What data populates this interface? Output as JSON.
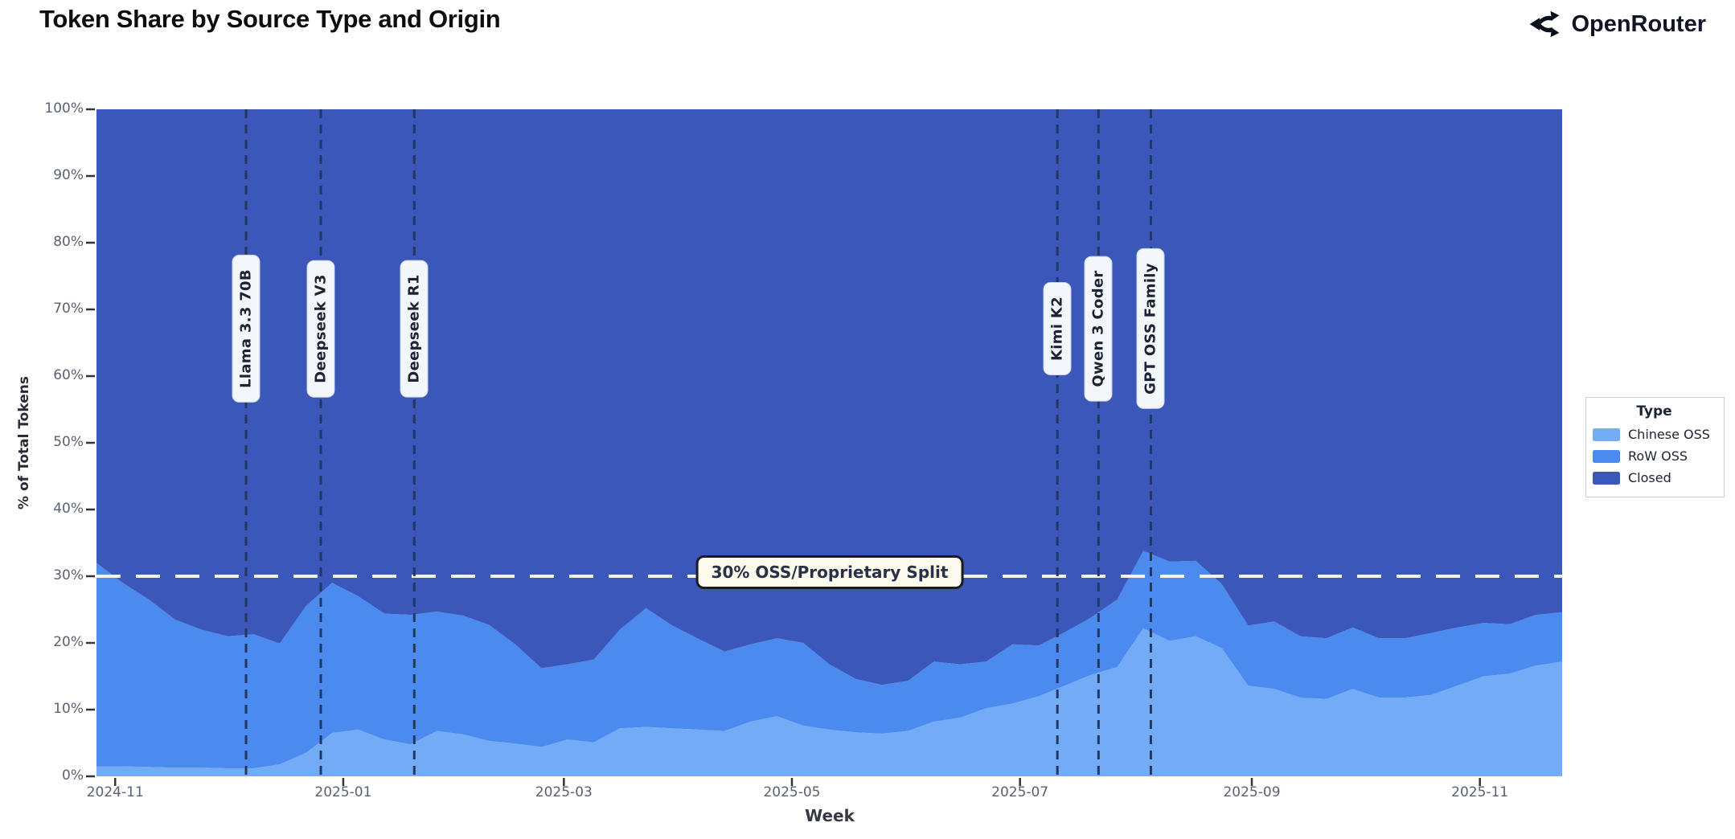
{
  "page": {
    "title": "Token Share by Source Type and Origin"
  },
  "brand": {
    "name": "OpenRouter"
  },
  "chart_data": {
    "type": "area",
    "stacked": true,
    "title": "Token Share by Source Type and Origin",
    "xlabel": "Week",
    "ylabel": "% of Total Tokens",
    "ylim": [
      0,
      100
    ],
    "grid": false,
    "legend_position": "right",
    "legend_title": "Type",
    "y_tick_labels": [
      "0%",
      "10%",
      "20%",
      "30%",
      "40%",
      "50%",
      "60%",
      "70%",
      "80%",
      "90%",
      "100%"
    ],
    "y_tick_values": [
      0,
      10,
      20,
      30,
      40,
      50,
      60,
      70,
      80,
      90,
      100
    ],
    "x_ticks": [
      {
        "label": "2024-11",
        "date": "2024-11-01"
      },
      {
        "label": "2025-01",
        "date": "2025-01-01"
      },
      {
        "label": "2025-03",
        "date": "2025-03-01"
      },
      {
        "label": "2025-05",
        "date": "2025-05-01"
      },
      {
        "label": "2025-07",
        "date": "2025-07-01"
      },
      {
        "label": "2025-09",
        "date": "2025-09-01"
      },
      {
        "label": "2025-11",
        "date": "2025-11-01"
      }
    ],
    "weeks": [
      "2024-10-27",
      "2024-11-03",
      "2024-11-10",
      "2024-11-17",
      "2024-11-24",
      "2024-12-01",
      "2024-12-08",
      "2024-12-15",
      "2024-12-22",
      "2024-12-29",
      "2025-01-05",
      "2025-01-12",
      "2025-01-19",
      "2025-01-26",
      "2025-02-02",
      "2025-02-09",
      "2025-02-16",
      "2025-02-23",
      "2025-03-02",
      "2025-03-09",
      "2025-03-16",
      "2025-03-23",
      "2025-03-30",
      "2025-04-06",
      "2025-04-13",
      "2025-04-20",
      "2025-04-27",
      "2025-05-04",
      "2025-05-11",
      "2025-05-18",
      "2025-05-25",
      "2025-06-01",
      "2025-06-08",
      "2025-06-15",
      "2025-06-22",
      "2025-06-29",
      "2025-07-06",
      "2025-07-13",
      "2025-07-20",
      "2025-07-27",
      "2025-08-03",
      "2025-08-10",
      "2025-08-17",
      "2025-08-24",
      "2025-08-31",
      "2025-09-07",
      "2025-09-14",
      "2025-09-21",
      "2025-09-28",
      "2025-10-05",
      "2025-10-12",
      "2025-10-19",
      "2025-10-26",
      "2025-11-02",
      "2025-11-09",
      "2025-11-16",
      "2025-11-23"
    ],
    "series": [
      {
        "name": "Chinese OSS",
        "color": "#74abf7",
        "values": [
          1.5,
          1.5,
          1.4,
          1.3,
          1.3,
          1.2,
          1.2,
          1.8,
          3.5,
          6.5,
          7.0,
          5.5,
          4.8,
          6.8,
          6.3,
          5.3,
          4.9,
          4.4,
          5.5,
          5.1,
          7.2,
          7.4,
          7.2,
          7.0,
          6.8,
          8.2,
          9.0,
          7.6,
          7.0,
          6.6,
          6.4,
          6.8,
          8.2,
          8.8,
          10.2,
          10.9,
          12.0,
          13.6,
          15.2,
          16.4,
          22.2,
          20.3,
          21.0,
          19.2,
          13.6,
          13.1,
          11.8,
          11.6,
          13.1,
          11.8,
          11.8,
          12.2,
          13.6,
          15.0,
          15.4,
          16.6,
          17.2
        ]
      },
      {
        "name": "RoW OSS",
        "color": "#4b8aef",
        "values": [
          30.5,
          27.5,
          25.1,
          22.2,
          20.7,
          19.8,
          20.1,
          18.1,
          22.0,
          22.5,
          20.0,
          18.9,
          19.4,
          17.9,
          17.8,
          17.4,
          14.9,
          11.8,
          11.3,
          12.4,
          14.8,
          17.8,
          15.4,
          13.6,
          11.9,
          11.6,
          11.7,
          12.4,
          9.8,
          8.0,
          7.3,
          7.5,
          9.0,
          8.0,
          7.0,
          8.9,
          7.6,
          8.0,
          8.6,
          10.1,
          11.6,
          11.9,
          11.3,
          9.6,
          9.0,
          10.1,
          9.2,
          9.1,
          9.2,
          8.9,
          8.9,
          9.3,
          8.7,
          8.0,
          7.4,
          7.6,
          7.4
        ]
      },
      {
        "name": "Closed",
        "color": "#3b57ba",
        "values": [
          68.0,
          71.0,
          73.5,
          76.5,
          78.0,
          79.0,
          78.7,
          80.1,
          74.5,
          71.0,
          73.0,
          75.6,
          75.8,
          75.3,
          75.9,
          77.3,
          80.2,
          83.8,
          83.2,
          82.5,
          78.0,
          74.8,
          77.4,
          79.4,
          81.3,
          80.2,
          79.3,
          80.0,
          83.2,
          85.4,
          86.3,
          85.7,
          82.8,
          83.2,
          82.8,
          80.2,
          80.4,
          78.4,
          76.2,
          73.5,
          66.2,
          67.8,
          67.7,
          71.2,
          77.4,
          76.8,
          79.0,
          79.3,
          77.7,
          79.3,
          79.3,
          78.5,
          77.7,
          77.0,
          77.2,
          75.8,
          75.4
        ]
      }
    ],
    "annotations": {
      "events": [
        {
          "label": "Llama 3.3 70B",
          "date": "2024-12-06"
        },
        {
          "label": "Deepseek V3",
          "date": "2024-12-26"
        },
        {
          "label": "Deepseek R1",
          "date": "2025-01-20"
        },
        {
          "label": "Kimi K2",
          "date": "2025-07-11"
        },
        {
          "label": "Qwen 3 Coder",
          "date": "2025-07-22"
        },
        {
          "label": "GPT OSS Family",
          "date": "2025-08-05"
        }
      ],
      "hline": {
        "label": "30% OSS/Proprietary Split",
        "value": 30
      }
    },
    "colors": {
      "event_line": "#24385f",
      "split_line": "#f2f2f2",
      "tick_mark": "#30343c"
    }
  }
}
